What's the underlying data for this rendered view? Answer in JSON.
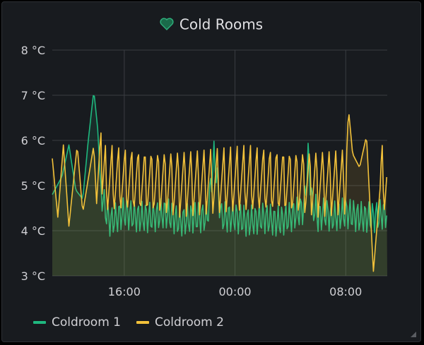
{
  "panel": {
    "title": "Cold Rooms",
    "icon": "heart-icon"
  },
  "colors": {
    "coldroom1": "#1fb87f",
    "coldroom2": "#f2c13a",
    "grid": "#3a3d42",
    "text": "#d0d0d4",
    "fill": "#3a3a2a"
  },
  "chart_data": {
    "type": "line",
    "title": "Cold Rooms",
    "ylim": [
      3,
      8
    ],
    "y_ticks": [
      "8 °C",
      "7 °C",
      "6 °C",
      "5 °C",
      "4 °C",
      "3 °C"
    ],
    "y_tick_values": [
      8,
      7,
      6,
      5,
      4,
      3
    ],
    "x_ticks": [
      "16:00",
      "00:00",
      "08:00"
    ],
    "x_tick_hours": [
      16,
      24,
      32
    ],
    "x_range_hours": [
      10.8,
      35.0
    ],
    "grid": true,
    "legend_position": "bottom-left",
    "series": [
      {
        "name": "Coldroom 1",
        "color": "#1fb87f",
        "x": [
          10.8,
          11.5,
          12.0,
          12.5,
          13.0,
          13.4,
          13.8,
          14.1,
          14.3,
          14.7,
          15.0,
          15.5,
          16.0,
          17.0,
          18.0,
          19.0,
          20.0,
          21.0,
          22.0,
          22.5,
          23.0,
          24.0,
          25.0,
          26.0,
          27.0,
          28.0,
          29.0,
          29.3,
          29.6,
          29.8,
          30.0,
          30.5,
          31.0,
          32.0,
          33.0,
          34.0,
          35.0
        ],
        "values": [
          4.8,
          5.2,
          5.9,
          4.9,
          4.7,
          6.0,
          7.1,
          6.2,
          4.9,
          4.4,
          4.2,
          4.3,
          4.4,
          4.3,
          4.3,
          4.4,
          4.2,
          4.3,
          4.3,
          5.7,
          4.3,
          4.3,
          4.2,
          4.3,
          4.2,
          4.3,
          4.5,
          5.7,
          4.5,
          4.5,
          4.3,
          4.4,
          4.3,
          4.4,
          4.3,
          4.3,
          4.4
        ]
      },
      {
        "name": "Coldroom 2",
        "color": "#f2c13a",
        "x": [
          10.8,
          11.2,
          11.6,
          12.0,
          12.6,
          13.0,
          13.8,
          14.0,
          14.3,
          15.0,
          16.0,
          17.0,
          18.0,
          19.0,
          20.0,
          21.0,
          22.0,
          23.0,
          24.0,
          25.0,
          26.0,
          27.0,
          28.0,
          29.0,
          30.0,
          31.0,
          32.0,
          32.2,
          32.5,
          33.0,
          33.5,
          34.0,
          34.5,
          35.0
        ],
        "values": [
          5.6,
          4.3,
          5.9,
          4.1,
          5.9,
          4.4,
          5.9,
          4.6,
          6.2,
          5.0,
          5.0,
          5.0,
          5.0,
          5.0,
          5.0,
          5.0,
          5.0,
          5.0,
          5.0,
          5.0,
          5.0,
          5.0,
          5.0,
          5.0,
          5.0,
          5.0,
          5.2,
          6.7,
          5.7,
          5.4,
          6.1,
          3.1,
          5.0,
          5.8
        ]
      }
    ]
  }
}
